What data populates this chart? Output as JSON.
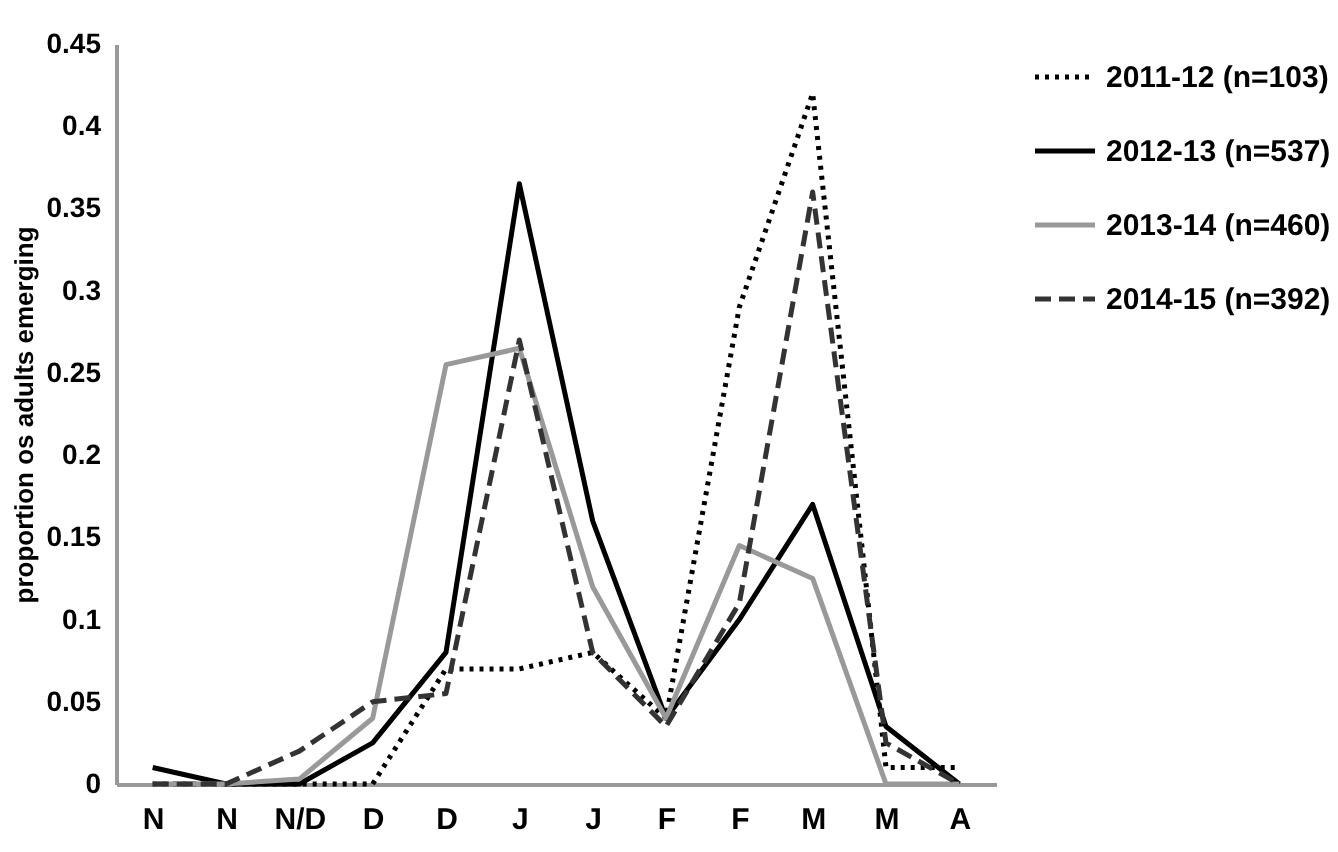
{
  "chart_data": {
    "type": "line",
    "ylabel": "proportion os adults emerging",
    "categories": [
      "N",
      "N",
      "N/D",
      "D",
      "D",
      "J",
      "J",
      "F",
      "F",
      "M",
      "M",
      "A"
    ],
    "series": [
      {
        "name": "2011-12 (n=103)",
        "color": "#000000",
        "line_style": "dotted",
        "values": [
          0,
          0,
          0,
          0,
          0.07,
          0.07,
          0.08,
          0.04,
          0.29,
          0.42,
          0.01,
          0.01
        ]
      },
      {
        "name": "2012-13 (n=537)",
        "color": "#000000",
        "line_style": "solid",
        "values": [
          0.01,
          0,
          0,
          0.025,
          0.08,
          0.365,
          0.16,
          0.04,
          0.1,
          0.17,
          0.035,
          0
        ]
      },
      {
        "name": "2013-14 (n=460)",
        "color": "#999999",
        "line_style": "solid",
        "values": [
          0,
          0,
          0.003,
          0.04,
          0.255,
          0.265,
          0.12,
          0.04,
          0.145,
          0.125,
          0,
          0
        ]
      },
      {
        "name": "2014-15 (n=392)",
        "color": "#333333",
        "line_style": "dashed",
        "values": [
          0,
          0,
          0.02,
          0.05,
          0.055,
          0.27,
          0.08,
          0.035,
          0.11,
          0.36,
          0.025,
          0
        ]
      }
    ],
    "ylim": [
      0,
      0.45
    ],
    "yticks": [
      0,
      0.05,
      0.1,
      0.15,
      0.2,
      0.25,
      0.3,
      0.35,
      0.4,
      0.45
    ],
    "grid": false,
    "legend": "top right",
    "marker": "none"
  }
}
